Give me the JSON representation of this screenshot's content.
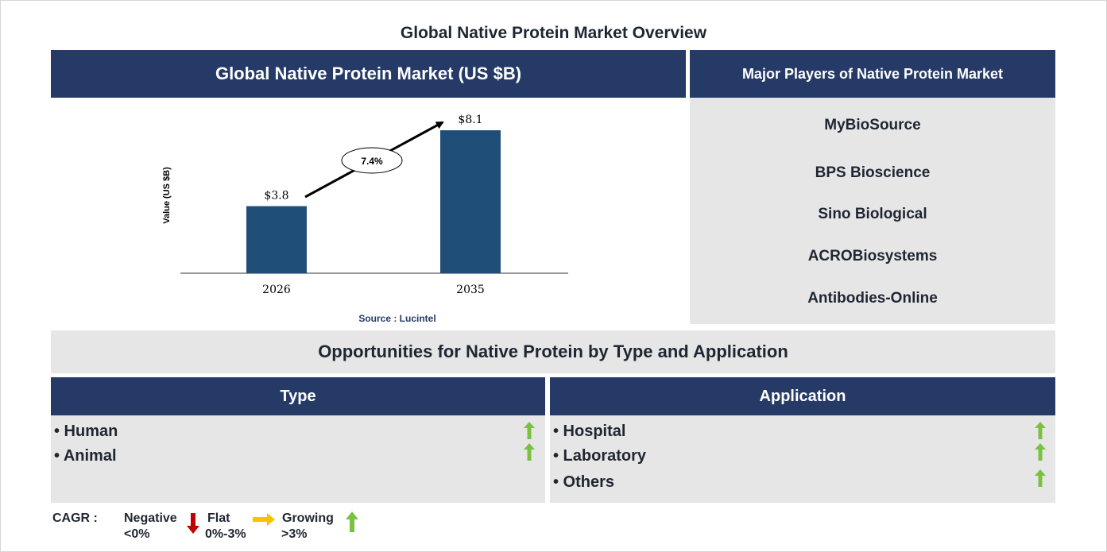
{
  "page_title": "Global Native Protein Market Overview",
  "chart_header": "Global Native Protein Market (US $B)",
  "chart_data": {
    "type": "bar",
    "categories": [
      "2026",
      "2035"
    ],
    "values": [
      3.8,
      8.1
    ],
    "value_labels": [
      "$3.8",
      "$8.1"
    ],
    "ylabel": "Value (US $B)",
    "xlabel": "",
    "ylim": [
      0,
      8.1
    ],
    "cagr_label": "7.4%",
    "source": "Source : Lucintel",
    "bar_color": "#1f4e79"
  },
  "players": {
    "header": "Major Players of Native Protein Market",
    "items": [
      "MyBioSource",
      "BPS Bioscience",
      "Sino Biological",
      "ACROBiosystems",
      "Antibodies-Online"
    ]
  },
  "opportunities_title": "Opportunities for Native Protein by Type and Application",
  "type": {
    "header": "Type",
    "items": [
      "• Human",
      "• Animal"
    ]
  },
  "application": {
    "header": "Application",
    "items": [
      "• Hospital",
      "• Laboratory",
      "• Others"
    ]
  },
  "legend": {
    "label": "CAGR  :",
    "negative": [
      "Negative",
      "<0%"
    ],
    "flat": [
      "Flat",
      "0%-3%"
    ],
    "growing": [
      "Growing",
      ">3%"
    ]
  },
  "colors": {
    "navy": "#253a66",
    "gray": "#e6e6e6",
    "green": "#7ac142",
    "red": "#c00000",
    "amber": "#ffc000"
  }
}
